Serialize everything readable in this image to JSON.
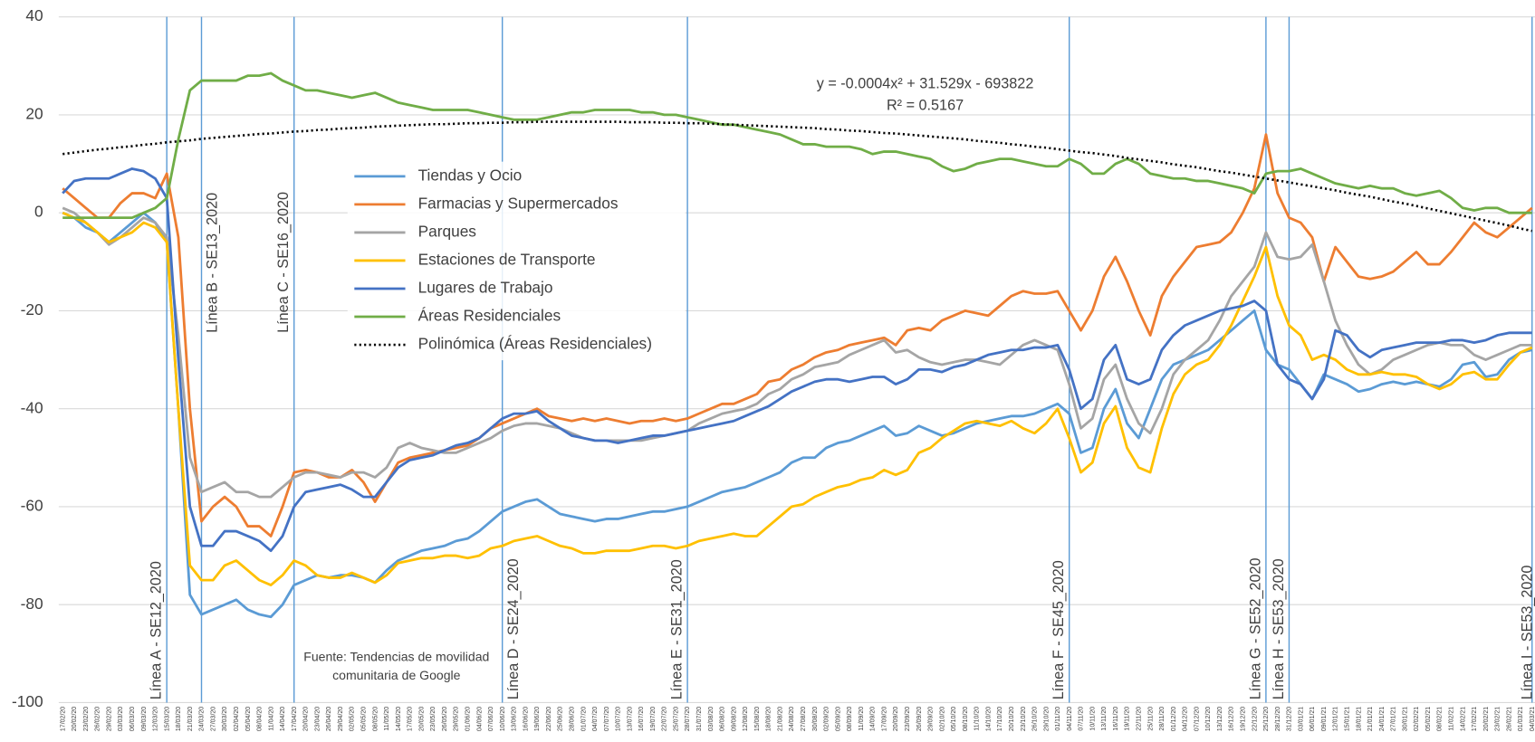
{
  "chart_data": {
    "type": "line",
    "x": [
      "17/02/20",
      "20/02/20",
      "23/02/20",
      "26/02/20",
      "29/02/20",
      "03/03/20",
      "06/03/20",
      "09/03/20",
      "12/03/20",
      "15/03/20",
      "18/03/20",
      "21/03/20",
      "24/03/20",
      "27/03/20",
      "30/03/20",
      "02/04/20",
      "05/04/20",
      "08/04/20",
      "11/04/20",
      "14/04/20",
      "17/04/20",
      "20/04/20",
      "23/04/20",
      "26/04/20",
      "29/04/20",
      "02/05/20",
      "05/05/20",
      "08/05/20",
      "11/05/20",
      "14/05/20",
      "17/05/20",
      "20/05/20",
      "23/05/20",
      "26/05/20",
      "29/05/20",
      "01/06/20",
      "04/06/20",
      "07/06/20",
      "10/06/20",
      "13/06/20",
      "16/06/20",
      "19/06/20",
      "22/06/20",
      "25/06/20",
      "28/06/20",
      "01/07/20",
      "04/07/20",
      "07/07/20",
      "10/07/20",
      "13/07/20",
      "16/07/20",
      "19/07/20",
      "22/07/20",
      "25/07/20",
      "28/07/20",
      "31/07/20",
      "03/08/20",
      "06/08/20",
      "09/08/20",
      "12/08/20",
      "15/08/20",
      "18/08/20",
      "21/08/20",
      "24/08/20",
      "27/08/20",
      "30/08/20",
      "02/09/20",
      "05/09/20",
      "08/09/20",
      "11/09/20",
      "14/09/20",
      "17/09/20",
      "20/09/20",
      "23/09/20",
      "26/09/20",
      "29/09/20",
      "02/10/20",
      "05/10/20",
      "08/10/20",
      "11/10/20",
      "14/10/20",
      "17/10/20",
      "20/10/20",
      "23/10/20",
      "26/10/20",
      "29/10/20",
      "01/11/20",
      "04/11/20",
      "07/11/20",
      "10/11/20",
      "13/11/20",
      "16/11/20",
      "19/11/20",
      "22/11/20",
      "25/11/20",
      "28/11/20",
      "01/12/20",
      "04/12/20",
      "07/12/20",
      "10/12/20",
      "13/12/20",
      "16/12/20",
      "19/12/20",
      "22/12/20",
      "25/12/20",
      "28/12/20",
      "31/12/20",
      "03/01/21",
      "06/01/21",
      "09/01/21",
      "12/01/21",
      "15/01/21",
      "18/01/21",
      "21/01/21",
      "24/01/21",
      "27/01/21",
      "30/01/21",
      "02/02/21",
      "05/02/21",
      "08/02/21",
      "11/02/21",
      "14/02/21",
      "17/02/21",
      "20/02/21",
      "23/02/21",
      "26/02/21",
      "01/03/21",
      "04/03/21"
    ],
    "ylim": [
      -100,
      40
    ],
    "yticks": [
      -100,
      -80,
      -60,
      -40,
      -20,
      0,
      20,
      40
    ],
    "grid": true,
    "series": [
      {
        "name": "Tiendas y Ocio",
        "color": "#5b9bd5",
        "values": [
          0,
          -1,
          -3,
          -4,
          -6,
          -4,
          -2,
          0,
          -2,
          -6,
          -40,
          -78,
          -82,
          -81,
          -80,
          -79,
          -81,
          -82,
          -82.5,
          -80,
          -76,
          -75,
          -74,
          -74.5,
          -74,
          -74,
          -74.5,
          -75.5,
          -73,
          -71,
          -70,
          -69,
          -68.5,
          -68,
          -67,
          -66.5,
          -65,
          -63,
          -61,
          -60,
          -59,
          -58.5,
          -60,
          -61.5,
          -62,
          -62.5,
          -63,
          -62.5,
          -62.5,
          -62,
          -61.5,
          -61,
          -61,
          -60.5,
          -60,
          -59,
          -58,
          -57,
          -56.5,
          -56,
          -55,
          -54,
          -53,
          -51,
          -50,
          -50,
          -48,
          -47,
          -46.5,
          -45.5,
          -44.5,
          -43.5,
          -45.5,
          -45,
          -43.5,
          -44.5,
          -45.5,
          -45,
          -44,
          -43,
          -42.5,
          -42,
          -41.5,
          -41.5,
          -41,
          -40,
          -39,
          -41,
          -49,
          -48,
          -40,
          -36,
          -43,
          -46,
          -40,
          -34,
          -31,
          -30,
          -29,
          -28,
          -26,
          -24,
          -22,
          -20,
          -28,
          -31,
          -32,
          -35,
          -38,
          -33,
          -34,
          -35,
          -36.5,
          -36,
          -35,
          -34.5,
          -35,
          -34.5,
          -35,
          -35.5,
          -34,
          -31,
          -30.5,
          -33.5,
          -33,
          -30,
          -28.5,
          -28
        ]
      },
      {
        "name": "Farmacias y Supermercados",
        "color": "#ed7d31",
        "values": [
          5,
          3,
          1,
          -1,
          -1,
          2,
          4,
          4,
          3,
          8,
          -5,
          -40,
          -63,
          -60,
          -58,
          -60,
          -64,
          -64,
          -66,
          -60,
          -53,
          -52.5,
          -53,
          -54,
          -54,
          -52.5,
          -55,
          -59,
          -55,
          -51,
          -50,
          -49.5,
          -49,
          -48.5,
          -48,
          -47.5,
          -46,
          -44,
          -43,
          -42,
          -41,
          -40,
          -41.5,
          -42,
          -42.5,
          -42,
          -42.5,
          -42,
          -42.5,
          -43,
          -42.5,
          -42.5,
          -42,
          -42.5,
          -42,
          -41,
          -40,
          -39,
          -39,
          -38,
          -37,
          -34.5,
          -34,
          -32,
          -31,
          -29.5,
          -28.5,
          -28,
          -27,
          -26.5,
          -26,
          -25.5,
          -27,
          -24,
          -23.5,
          -24,
          -22,
          -21,
          -20,
          -20.5,
          -21,
          -19,
          -17,
          -16,
          -16.5,
          -16.5,
          -16,
          -20,
          -24,
          -20,
          -13,
          -9,
          -14,
          -20,
          -25,
          -17,
          -13,
          -10,
          -7,
          -6.5,
          -6,
          -4,
          0,
          5,
          16,
          4,
          -1,
          -2,
          -5,
          -14,
          -7,
          -10,
          -13,
          -13.5,
          -13,
          -12,
          -10,
          -8,
          -10.5,
          -10.5,
          -8,
          -5,
          -2,
          -4,
          -5,
          -3,
          -1,
          1
        ]
      },
      {
        "name": "Parques",
        "color": "#a5a5a5",
        "values": [
          1,
          0,
          -2,
          -4,
          -6.5,
          -5,
          -3,
          -1,
          -2,
          -5,
          -25,
          -50,
          -57,
          -56,
          -55,
          -57,
          -57,
          -58,
          -58,
          -56,
          -54,
          -53,
          -53,
          -53.5,
          -54,
          -53,
          -53,
          -54,
          -52,
          -48,
          -47,
          -48,
          -48.5,
          -49,
          -49,
          -48,
          -47,
          -46,
          -44.5,
          -43.5,
          -43,
          -43,
          -43.5,
          -44,
          -45,
          -46,
          -46.5,
          -46.5,
          -46.5,
          -46.5,
          -46.5,
          -46,
          -45.5,
          -45,
          -44.5,
          -43,
          -42,
          -41,
          -40.5,
          -40,
          -39,
          -37,
          -36,
          -34,
          -33,
          -31.5,
          -31,
          -30.5,
          -29,
          -28,
          -27,
          -26,
          -28.5,
          -28,
          -29.5,
          -30.5,
          -31,
          -30.5,
          -30,
          -30,
          -30.5,
          -31,
          -29,
          -27,
          -26,
          -27,
          -28,
          -35,
          -44,
          -42,
          -34,
          -31,
          -38,
          -43,
          -45,
          -40,
          -33,
          -30,
          -28,
          -26,
          -22,
          -17,
          -14,
          -11,
          -4,
          -9,
          -9.5,
          -9,
          -6.5,
          -14,
          -22,
          -27,
          -31,
          -33,
          -32,
          -30,
          -29,
          -28,
          -27,
          -26.5,
          -27,
          -27,
          -29,
          -30,
          -29,
          -28,
          -27,
          -27
        ]
      },
      {
        "name": "Estaciones de Transporte",
        "color": "#ffc000",
        "values": [
          0,
          -1,
          -2,
          -4,
          -6,
          -5,
          -4,
          -2,
          -3,
          -6,
          -40,
          -72,
          -75,
          -75,
          -72,
          -71,
          -73,
          -75,
          -76,
          -74,
          -71,
          -72,
          -74,
          -74.5,
          -74.5,
          -73.5,
          -74.5,
          -75.5,
          -74,
          -71.5,
          -71,
          -70.5,
          -70.5,
          -70,
          -70,
          -70.5,
          -70,
          -68.5,
          -68,
          -67,
          -66.5,
          -66,
          -67,
          -68,
          -68.5,
          -69.5,
          -69.5,
          -69,
          -69,
          -69,
          -68.5,
          -68,
          -68,
          -68.5,
          -68,
          -67,
          -66.5,
          -66,
          -65.5,
          -66,
          -66,
          -64,
          -62,
          -60,
          -59.5,
          -58,
          -57,
          -56,
          -55.5,
          -54.5,
          -54,
          -52.5,
          -53.5,
          -52.5,
          -49,
          -48,
          -46,
          -44.5,
          -43,
          -42.5,
          -43,
          -43.5,
          -42.5,
          -44,
          -45,
          -43,
          -40,
          -46,
          -53,
          -51,
          -43,
          -39.5,
          -48,
          -52,
          -53,
          -44,
          -37,
          -33,
          -31,
          -30,
          -27,
          -23,
          -18,
          -13,
          -7,
          -17,
          -23,
          -25,
          -30,
          -29,
          -30,
          -32,
          -33,
          -33,
          -32.5,
          -33,
          -33,
          -33.5,
          -35,
          -36,
          -35,
          -33,
          -32.5,
          -34,
          -34,
          -31,
          -28.5,
          -27.5
        ]
      },
      {
        "name": "Lugares de Trabajo",
        "color": "#4472c4",
        "values": [
          4,
          6.5,
          7,
          7,
          7,
          8,
          9,
          8.5,
          7,
          3,
          -30,
          -60,
          -68,
          -68,
          -65,
          -65,
          -66,
          -67,
          -69,
          -66,
          -60,
          -57,
          -56.5,
          -56,
          -55.5,
          -56.5,
          -58,
          -58,
          -55,
          -52,
          -50.5,
          -50,
          -49.5,
          -48.5,
          -47.5,
          -47,
          -46,
          -44,
          -42,
          -41,
          -41,
          -40.5,
          -42.5,
          -44,
          -45.5,
          -46,
          -46.5,
          -46.5,
          -47,
          -46.5,
          -46,
          -45.5,
          -45.5,
          -45,
          -44.5,
          -44,
          -43.5,
          -43,
          -42.5,
          -41.5,
          -40.5,
          -39.5,
          -38,
          -36.5,
          -35.5,
          -34.5,
          -34,
          -34,
          -34.5,
          -34,
          -33.5,
          -33.5,
          -35,
          -34,
          -32,
          -32,
          -32.5,
          -31.5,
          -31,
          -30,
          -29,
          -28.5,
          -28,
          -28,
          -27.5,
          -27.5,
          -27,
          -32,
          -40,
          -38,
          -30,
          -27,
          -34,
          -35,
          -34,
          -28,
          -25,
          -23,
          -22,
          -21,
          -20,
          -19.5,
          -19,
          -18,
          -20,
          -31,
          -34,
          -35,
          -38,
          -34,
          -24,
          -25,
          -28,
          -29.5,
          -28,
          -27.5,
          -27,
          -26.5,
          -26.5,
          -26.5,
          -26,
          -26,
          -26.5,
          -26,
          -25,
          -24.5,
          -24.5,
          -24.5
        ]
      },
      {
        "name": "Áreas Residenciales",
        "color": "#70ad47",
        "values": [
          -1,
          -1,
          -1,
          -1,
          -1,
          -1,
          -1,
          0,
          1,
          3,
          15,
          25,
          27,
          27,
          27,
          27,
          28,
          28,
          28.5,
          27,
          26,
          25,
          25,
          24.5,
          24,
          23.5,
          24,
          24.5,
          23.5,
          22.5,
          22,
          21.5,
          21,
          21,
          21,
          21,
          20.5,
          20,
          19.5,
          19,
          19,
          19,
          19.5,
          20,
          20.5,
          20.5,
          21,
          21,
          21,
          21,
          20.5,
          20.5,
          20,
          20,
          19.5,
          19,
          18.5,
          18,
          18,
          17.5,
          17,
          16.5,
          16,
          15,
          14,
          14,
          13.5,
          13.5,
          13.5,
          13,
          12,
          12.5,
          12.5,
          12,
          11.5,
          11,
          9.5,
          8.5,
          9,
          10,
          10.5,
          11,
          11,
          10.5,
          10,
          9.5,
          9.5,
          11,
          10,
          8,
          8,
          10,
          11,
          10,
          8,
          7.5,
          7,
          7,
          6.5,
          6.5,
          6,
          5.5,
          5,
          4,
          8,
          8.5,
          8.5,
          9,
          8,
          7,
          6,
          5.5,
          5,
          5.5,
          5,
          5,
          4,
          3.5,
          4,
          4.5,
          3,
          1,
          0.5,
          1,
          1,
          0,
          0,
          0
        ]
      },
      {
        "name": "Polinómica (Áreas Residenciales)",
        "color": "#000000",
        "dash": "dotted",
        "values": [
          12.0,
          12.3,
          12.6,
          12.9,
          13.1,
          13.4,
          13.6,
          13.9,
          14.1,
          14.4,
          14.6,
          14.8,
          15.1,
          15.3,
          15.5,
          15.7,
          15.9,
          16.1,
          16.2,
          16.4,
          16.6,
          16.7,
          16.9,
          17.0,
          17.2,
          17.3,
          17.4,
          17.6,
          17.7,
          17.8,
          17.9,
          18.0,
          18.1,
          18.1,
          18.2,
          18.3,
          18.3,
          18.4,
          18.4,
          18.5,
          18.5,
          18.6,
          18.6,
          18.6,
          18.6,
          18.6,
          18.6,
          18.6,
          18.6,
          18.5,
          18.5,
          18.5,
          18.4,
          18.4,
          18.3,
          18.3,
          18.2,
          18.1,
          18.0,
          17.9,
          17.8,
          17.7,
          17.6,
          17.5,
          17.4,
          17.3,
          17.1,
          17.0,
          16.8,
          16.7,
          16.5,
          16.3,
          16.2,
          16.0,
          15.8,
          15.6,
          15.4,
          15.2,
          15.0,
          14.7,
          14.5,
          14.3,
          14.0,
          13.8,
          13.5,
          13.3,
          13.0,
          12.7,
          12.4,
          12.2,
          11.9,
          11.6,
          11.2,
          10.9,
          10.6,
          10.3,
          9.9,
          9.6,
          9.3,
          8.9,
          8.5,
          8.2,
          7.8,
          7.4,
          7.0,
          6.6,
          6.2,
          5.8,
          5.4,
          5.0,
          4.6,
          4.1,
          3.7,
          3.3,
          2.8,
          2.3,
          1.9,
          1.4,
          0.9,
          0.4,
          -0.1,
          -0.6,
          -1.1,
          -1.6,
          -2.1,
          -2.6,
          -3.2,
          -3.7
        ]
      }
    ],
    "vlines": [
      {
        "label": "Línea A - SE12_2020",
        "x": "15/03/20"
      },
      {
        "label": "Línea B - SE13_2020",
        "x": "24/03/20"
      },
      {
        "label": "Línea C - SE16_2020",
        "x": "17/04/20"
      },
      {
        "label": "Línea D - SE24_2020",
        "x": "10/06/20"
      },
      {
        "label": "Línea E - SE31_2020",
        "x": "28/07/20"
      },
      {
        "label": "Línea F - SE45_2020",
        "x": "04/11/20"
      },
      {
        "label": "Línea G - SE52_2020",
        "x": "25/12/20"
      },
      {
        "label": "Línea H - SE53_2020",
        "x": "31/12/20"
      },
      {
        "label": "Línea I - SE53_2020",
        "x": "04/03/21"
      }
    ],
    "trendline_equation": "y = -0.0004x² + 31.529x - 693822",
    "r_squared_label": "R² = 0.5167",
    "source": [
      "Fuente: Tendencias de movilidad",
      "comunitaria de Google"
    ]
  }
}
